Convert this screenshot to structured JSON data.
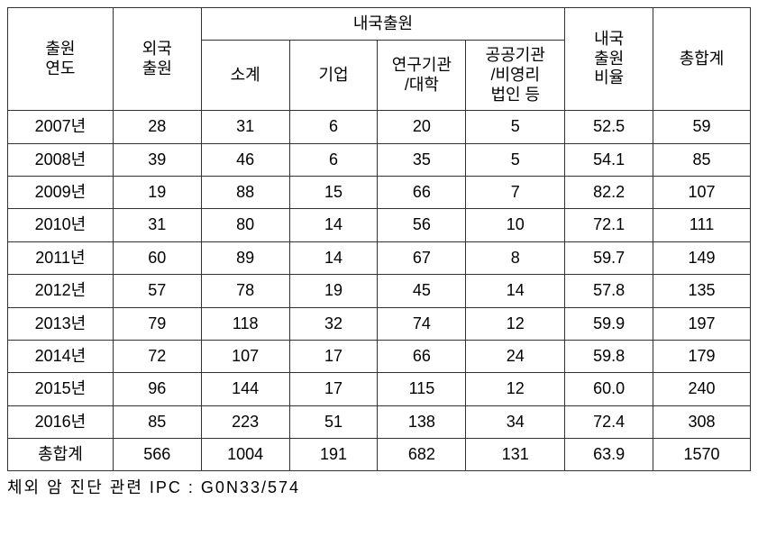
{
  "headers": {
    "col0_line1": "출원",
    "col0_line2": "연도",
    "col1_line1": "외국",
    "col1_line2": "출원",
    "domestic_group": "내국출원",
    "col2": "소계",
    "col3": "기업",
    "col4_line1": "연구기관",
    "col4_line2": "/대학",
    "col5_line1": "공공기관",
    "col5_line2": "/비영리",
    "col5_line3": "법인 등",
    "col6_line1": "내국",
    "col6_line2": "출원",
    "col6_line3": "비율",
    "col7": "총합계"
  },
  "rows": [
    {
      "c0": "2007년",
      "c1": "28",
      "c2": "31",
      "c3": "6",
      "c4": "20",
      "c5": "5",
      "c6": "52.5",
      "c7": "59"
    },
    {
      "c0": "2008년",
      "c1": "39",
      "c2": "46",
      "c3": "6",
      "c4": "35",
      "c5": "5",
      "c6": "54.1",
      "c7": "85"
    },
    {
      "c0": "2009년",
      "c1": "19",
      "c2": "88",
      "c3": "15",
      "c4": "66",
      "c5": "7",
      "c6": "82.2",
      "c7": "107"
    },
    {
      "c0": "2010년",
      "c1": "31",
      "c2": "80",
      "c3": "14",
      "c4": "56",
      "c5": "10",
      "c6": "72.1",
      "c7": "111"
    },
    {
      "c0": "2011년",
      "c1": "60",
      "c2": "89",
      "c3": "14",
      "c4": "67",
      "c5": "8",
      "c6": "59.7",
      "c7": "149"
    },
    {
      "c0": "2012년",
      "c1": "57",
      "c2": "78",
      "c3": "19",
      "c4": "45",
      "c5": "14",
      "c6": "57.8",
      "c7": "135"
    },
    {
      "c0": "2013년",
      "c1": "79",
      "c2": "118",
      "c3": "32",
      "c4": "74",
      "c5": "12",
      "c6": "59.9",
      "c7": "197"
    },
    {
      "c0": "2014년",
      "c1": "72",
      "c2": "107",
      "c3": "17",
      "c4": "66",
      "c5": "24",
      "c6": "59.8",
      "c7": "179"
    },
    {
      "c0": "2015년",
      "c1": "96",
      "c2": "144",
      "c3": "17",
      "c4": "115",
      "c5": "12",
      "c6": "60.0",
      "c7": "240"
    },
    {
      "c0": "2016년",
      "c1": "85",
      "c2": "223",
      "c3": "51",
      "c4": "138",
      "c5": "34",
      "c6": "72.4",
      "c7": "308"
    },
    {
      "c0": "총합계",
      "c1": "566",
      "c2": "1004",
      "c3": "191",
      "c4": "682",
      "c5": "131",
      "c6": "63.9",
      "c7": "1570"
    }
  ],
  "footnote": "체외 암 진단 관련 IPC : G0N33/574",
  "column_widths": [
    "117px",
    "98px",
    "98px",
    "98px",
    "98px",
    "110px",
    "98px",
    "108px"
  ]
}
